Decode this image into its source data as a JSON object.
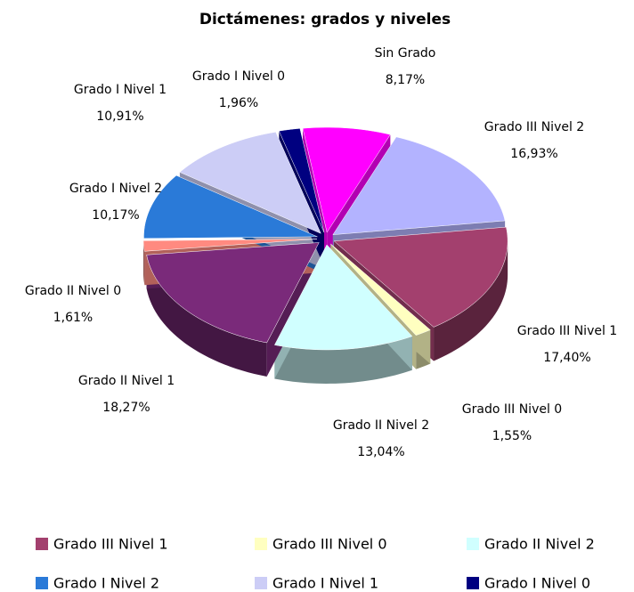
{
  "chart_data": {
    "type": "pie",
    "title": "Dictámenes: grados y niveles",
    "categories": [
      "Sin Grado",
      "Grado III Nivel 2",
      "Grado III Nivel 1",
      "Grado III Nivel 0",
      "Grado II Nivel 2",
      "Grado II Nivel 1",
      "Grado II Nivel 0",
      "Grado I Nivel 2",
      "Grado I Nivel 1",
      "Grado I Nivel 0"
    ],
    "values": [
      8.17,
      16.93,
      17.4,
      1.55,
      13.04,
      18.27,
      1.61,
      10.17,
      10.91,
      1.96
    ],
    "value_labels": [
      "8,17%",
      "16,93%",
      "17,40%",
      "1,55%",
      "13,04%",
      "18,27%",
      "1,61%",
      "10,17%",
      "10,91%",
      "1,96%"
    ],
    "colors": [
      "#ff00ff",
      "#b3b3ff",
      "#a3406e",
      "#ffffc0",
      "#d0ffff",
      "#7a2a7a",
      "#ff8a80",
      "#2a7ad8",
      "#cccdf6",
      "#000080"
    ]
  }
}
